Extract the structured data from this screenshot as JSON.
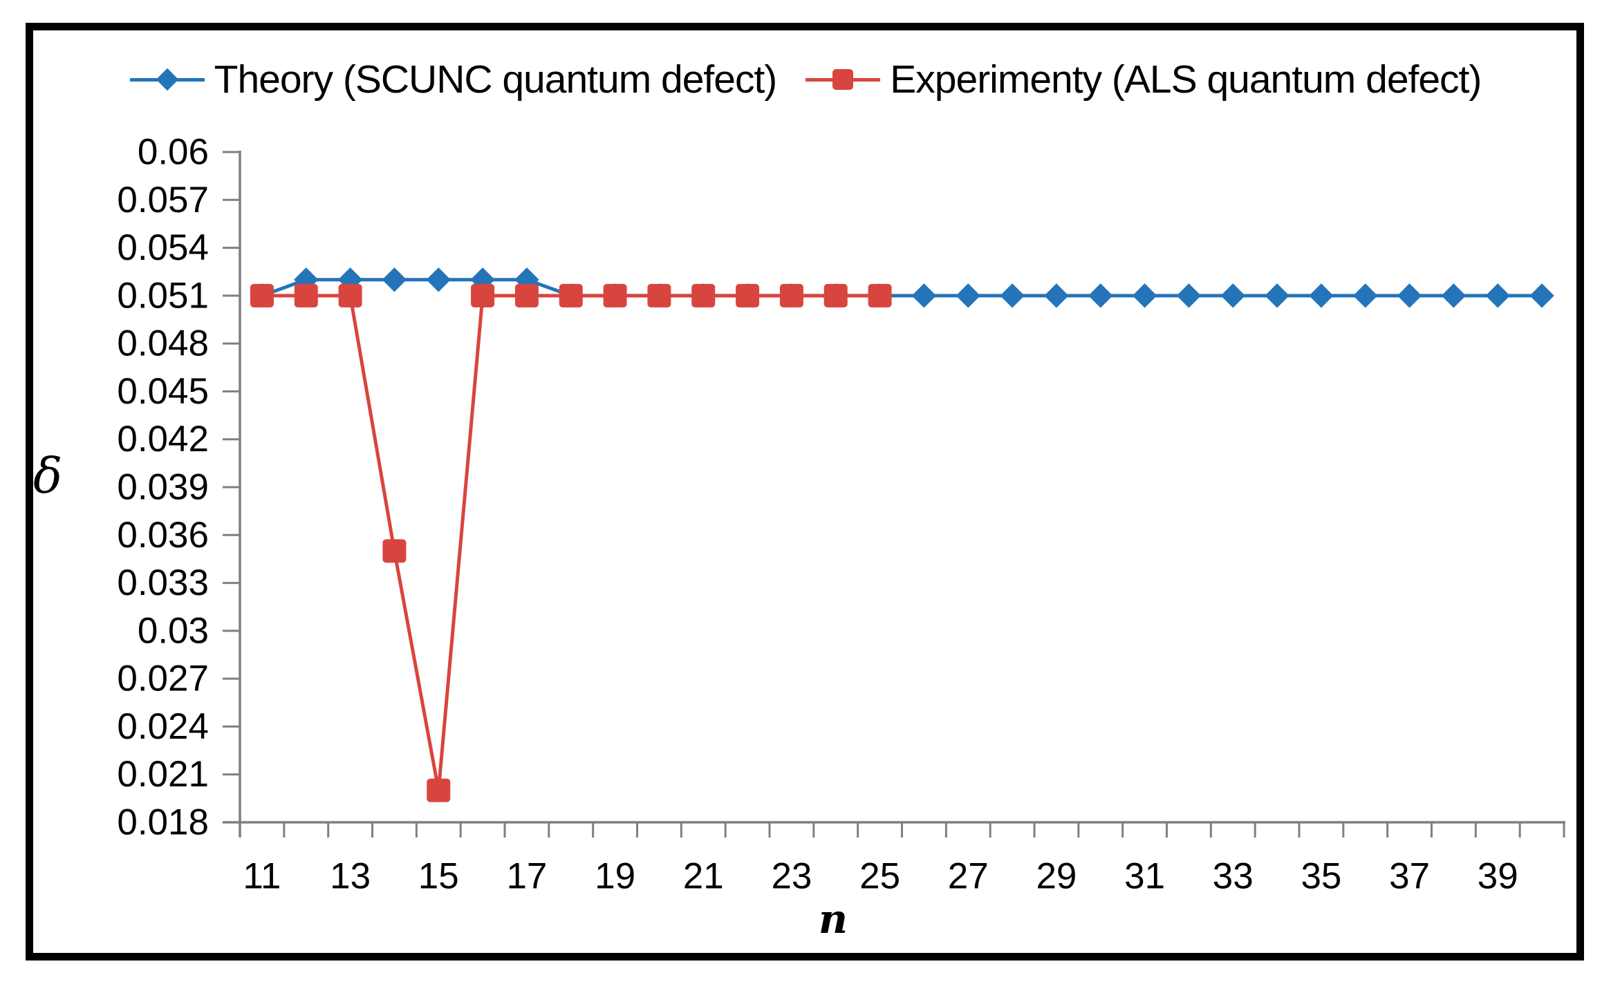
{
  "legend": {
    "items": [
      {
        "label": "Theory (SCUNC quantum defect)",
        "color": "#2474B9",
        "marker": "diamond"
      },
      {
        "label": "Experimenty (ALS quantum defect)",
        "color": "#D8453E",
        "marker": "square"
      }
    ]
  },
  "axes": {
    "y_label": "δ",
    "x_label": "n"
  },
  "colors": {
    "axis": "#7F7F7F",
    "theory_blue": "#2474B9",
    "experiment_red": "#D8453E"
  },
  "chart_data": {
    "type": "line",
    "title": "",
    "xlabel": "n",
    "ylabel": "δ",
    "x_categories_range": [
      11,
      40
    ],
    "ylim": [
      0.018,
      0.06
    ],
    "grid": false,
    "legend_position": "top",
    "y_ticks": [
      0.06,
      0.057,
      0.054,
      0.051,
      0.048,
      0.045,
      0.042,
      0.039,
      0.036,
      0.033,
      0.03,
      0.027,
      0.024,
      0.021,
      0.018
    ],
    "y_tick_labels": [
      "0.06",
      "0.057",
      "0.054",
      "0.051",
      "0.048",
      "0.045",
      "0.042",
      "0.039",
      "0.036",
      "0.033",
      "0.03",
      "0.027",
      "0.024",
      "0.021",
      "0.018"
    ],
    "x_tick_labels": [
      "11",
      "13",
      "15",
      "17",
      "19",
      "21",
      "23",
      "25",
      "27",
      "29",
      "31",
      "33",
      "35",
      "37",
      "39"
    ],
    "series": [
      {
        "name": "Theory (SCUNC quantum defect)",
        "color": "#2474B9",
        "marker": "diamond",
        "x": [
          11,
          12,
          13,
          14,
          15,
          16,
          17,
          18,
          19,
          20,
          21,
          22,
          23,
          24,
          25,
          26,
          27,
          28,
          29,
          30,
          31,
          32,
          33,
          34,
          35,
          36,
          37,
          38,
          39,
          40
        ],
        "values": [
          0.051,
          0.052,
          0.052,
          0.052,
          0.052,
          0.052,
          0.052,
          0.051,
          0.051,
          0.051,
          0.051,
          0.051,
          0.051,
          0.051,
          0.051,
          0.051,
          0.051,
          0.051,
          0.051,
          0.051,
          0.051,
          0.051,
          0.051,
          0.051,
          0.051,
          0.051,
          0.051,
          0.051,
          0.051,
          0.051
        ]
      },
      {
        "name": "Experimenty (ALS quantum defect)",
        "color": "#D8453E",
        "marker": "square",
        "x": [
          11,
          12,
          13,
          14,
          15,
          16,
          17,
          18,
          19,
          20,
          21,
          22,
          23,
          24,
          25
        ],
        "values": [
          0.051,
          0.051,
          0.051,
          0.035,
          0.02,
          0.051,
          0.051,
          0.051,
          0.051,
          0.051,
          0.051,
          0.051,
          0.051,
          0.051,
          0.051
        ]
      }
    ]
  }
}
